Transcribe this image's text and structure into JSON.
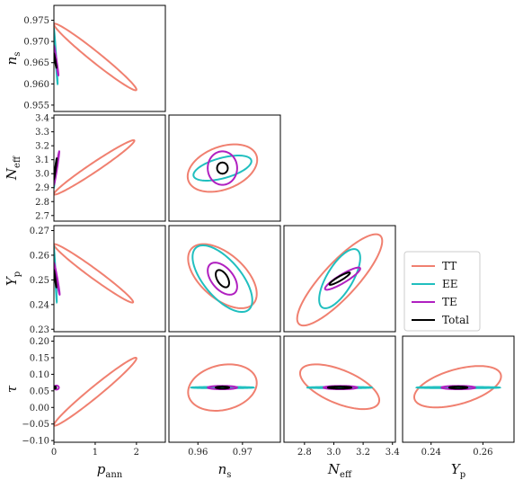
{
  "chart_data": {
    "type": "triangle-fisher-ellipses",
    "parameters": [
      {
        "key": "pann",
        "label": "p",
        "sub": "ann",
        "range": [
          0,
          2.7
        ],
        "ticks": [
          0,
          1,
          2
        ],
        "tick_labels": [
          "0",
          "1",
          "2"
        ],
        "center": 0
      },
      {
        "key": "ns",
        "label": "n",
        "sub": "s",
        "range": [
          0.9535,
          0.9785
        ],
        "ticks": [
          0.955,
          0.96,
          0.965,
          0.97,
          0.975
        ],
        "tick_labels": [
          "0.955",
          "0.960",
          "0.965",
          "0.970",
          "0.975"
        ],
        "x_ticks": [
          0.96,
          0.97
        ],
        "x_tick_labels": [
          "0.96",
          "0.97"
        ],
        "center": 0.9655
      },
      {
        "key": "neff",
        "label": "N",
        "sub": "eff",
        "range": [
          2.66,
          3.42
        ],
        "ticks": [
          2.7,
          2.8,
          2.9,
          3.0,
          3.1,
          3.2,
          3.3,
          3.4
        ],
        "tick_labels": [
          "2.7",
          "2.8",
          "2.9",
          "3.0",
          "3.1",
          "3.2",
          "3.3",
          "3.4"
        ],
        "x_ticks": [
          2.8,
          3.0,
          3.2,
          3.4
        ],
        "x_tick_labels": [
          "2.8",
          "3.0",
          "3.2",
          "3.4"
        ],
        "center": 3.04
      },
      {
        "key": "yp",
        "label": "Y",
        "sub": "p",
        "range": [
          0.229,
          0.272
        ],
        "ticks": [
          0.23,
          0.24,
          0.25,
          0.26,
          0.27
        ],
        "tick_labels": [
          "0.23",
          "0.24",
          "0.25",
          "0.26",
          "0.27"
        ],
        "x_ticks": [
          0.24,
          0.26
        ],
        "x_tick_labels": [
          "0.24",
          "0.26"
        ],
        "center": 0.2505
      },
      {
        "key": "tau",
        "label": "τ",
        "sub": "",
        "range": [
          -0.105,
          0.215
        ],
        "ticks": [
          -0.1,
          -0.05,
          0,
          0.05,
          0.1,
          0.15,
          0.2
        ],
        "tick_labels": [
          "−0.10",
          "−0.05",
          "0.00",
          "0.05",
          "0.10",
          "0.15",
          "0.20"
        ],
        "center": 0.06
      }
    ],
    "series": [
      {
        "name": "TT",
        "color": "#f08070"
      },
      {
        "name": "EE",
        "color": "#20bfbf"
      },
      {
        "name": "TE",
        "color": "#b020c0"
      },
      {
        "name": "Total",
        "color": "#000000"
      }
    ],
    "ellipses": {
      "1-0": {
        "TT": {
          "x": [
            0,
            2.0
          ],
          "y": [
            0.9585,
            0.9742
          ]
        },
        "EE": {
          "x": [
            0,
            0.09
          ],
          "y": [
            0.96,
            0.973
          ]
        },
        "TE": {
          "x": [
            0,
            0.11
          ],
          "y": [
            0.962,
            0.969
          ]
        },
        "Total": {
          "x": [
            0,
            0.06
          ],
          "y": [
            0.9638,
            0.9672
          ]
        }
      },
      "2-0": {
        "TT": {
          "x": [
            0,
            1.95
          ],
          "y": [
            2.85,
            3.24
          ]
        },
        "EE": {
          "x": [
            0,
            0.06
          ],
          "y": [
            2.9,
            3.1
          ]
        },
        "TE": {
          "x": [
            0,
            0.13
          ],
          "y": [
            2.92,
            3.16
          ]
        },
        "Total": {
          "x": [
            0,
            0.07
          ],
          "y": [
            2.96,
            3.11
          ]
        }
      },
      "3-0": {
        "TT": {
          "x": [
            0,
            1.92
          ],
          "y": [
            0.2408,
            0.2645
          ]
        },
        "EE": {
          "x": [
            0,
            0.07
          ],
          "y": [
            0.241,
            0.2632
          ]
        },
        "TE": {
          "x": [
            0,
            0.14
          ],
          "y": [
            0.244,
            0.257
          ]
        },
        "Total": {
          "x": [
            0,
            0.06
          ],
          "y": [
            0.247,
            0.254
          ]
        }
      },
      "4-0": {
        "TT": {
          "x": [
            0,
            2.0
          ],
          "y": [
            -0.055,
            0.15
          ]
        },
        "EE": {
          "x": [
            0,
            0.05
          ],
          "y": [
            0.056,
            0.064
          ]
        },
        "TE": {
          "x": [
            0,
            0.12
          ],
          "y": [
            0.054,
            0.066
          ]
        },
        "Total": {
          "x": [
            0,
            0.05
          ],
          "y": [
            0.057,
            0.063
          ]
        }
      },
      "2-1": {
        "TT": {
          "x": [
            0.9577,
            0.9733
          ],
          "y": [
            2.87,
            3.21
          ]
        },
        "EE": {
          "x": [
            0.959,
            0.972
          ],
          "y": [
            2.95,
            3.13
          ]
        },
        "TE": {
          "x": [
            0.9622,
            0.9688
          ],
          "y": [
            2.92,
            3.16
          ]
        },
        "Total": {
          "x": [
            0.9643,
            0.9667
          ],
          "y": [
            3.0,
            3.08
          ]
        }
      },
      "3-1": {
        "TT": {
          "x": [
            0.9578,
            0.9732
          ],
          "y": [
            0.2385,
            0.2645
          ]
        },
        "EE": {
          "x": [
            0.9588,
            0.9722
          ],
          "y": [
            0.237,
            0.264
          ]
        },
        "TE": {
          "x": [
            0.9622,
            0.9688
          ],
          "y": [
            0.244,
            0.257
          ]
        },
        "Total": {
          "x": [
            0.964,
            0.967
          ],
          "y": [
            0.247,
            0.254
          ]
        }
      },
      "4-1": {
        "TT": {
          "x": [
            0.9578,
            0.9732
          ],
          "y": [
            -0.01,
            0.13
          ]
        },
        "EE": {
          "x": [
            0.9585,
            0.9725
          ],
          "y": [
            0.058,
            0.062
          ]
        },
        "TE": {
          "x": [
            0.9622,
            0.9688
          ],
          "y": [
            0.055,
            0.065
          ]
        },
        "Total": {
          "x": [
            0.964,
            0.967
          ],
          "y": [
            0.057,
            0.063
          ]
        }
      },
      "3-2": {
        "TT": {
          "x": [
            2.75,
            3.33
          ],
          "y": [
            0.2315,
            0.2685
          ]
        },
        "EE": {
          "x": [
            2.9,
            3.18
          ],
          "y": [
            0.2385,
            0.2625
          ]
        },
        "TE": {
          "x": [
            2.94,
            3.18
          ],
          "y": [
            0.246,
            0.255
          ]
        },
        "Total": {
          "x": [
            2.97,
            3.11
          ],
          "y": [
            0.248,
            0.253
          ]
        }
      },
      "4-2": {
        "TT": {
          "x": [
            2.77,
            3.31
          ],
          "y": [
            -0.005,
            0.13
          ]
        },
        "EE": {
          "x": [
            2.82,
            3.26
          ],
          "y": [
            0.058,
            0.062
          ]
        },
        "TE": {
          "x": [
            2.93,
            3.16
          ],
          "y": [
            0.055,
            0.065
          ]
        },
        "Total": {
          "x": [
            2.96,
            3.12
          ],
          "y": [
            0.057,
            0.063
          ]
        }
      },
      "4-3": {
        "TT": {
          "x": [
            0.2335,
            0.267
          ],
          "y": [
            0.0,
            0.125
          ]
        },
        "EE": {
          "x": [
            0.2345,
            0.2665
          ],
          "y": [
            0.058,
            0.062
          ]
        },
        "TE": {
          "x": [
            0.244,
            0.257
          ],
          "y": [
            0.055,
            0.065
          ]
        },
        "Total": {
          "x": [
            0.247,
            0.254
          ],
          "y": [
            0.057,
            0.063
          ]
        }
      }
    },
    "correlation": {
      "1-0": {
        "TT": 1,
        "EE": 1,
        "TE": 1,
        "Total": 1
      },
      "2-0": {
        "TT": -1,
        "EE": -1,
        "TE": -1,
        "Total": -1
      },
      "3-0": {
        "TT": 1,
        "EE": 1,
        "TE": 1,
        "Total": 1
      },
      "4-0": {
        "TT": -1,
        "EE": 0,
        "TE": 0,
        "Total": 0
      },
      "2-1": {
        "TT": -0.35,
        "EE": -0.55,
        "TE": 0,
        "Total": 0
      },
      "3-1": {
        "TT": 0.55,
        "EE": 0.65,
        "TE": 0.5,
        "Total": 0.5
      },
      "4-1": {
        "TT": -0.2,
        "EE": 0,
        "TE": 0,
        "Total": 0
      },
      "3-2": {
        "TT": -0.85,
        "EE": -0.7,
        "TE": -0.9,
        "Total": -0.92
      },
      "4-2": {
        "TT": 0.6,
        "EE": 0,
        "TE": 0,
        "Total": 0
      },
      "4-3": {
        "TT": -0.5,
        "EE": 0,
        "TE": 0,
        "Total": 0
      }
    },
    "legend": {
      "placement": "right-middle",
      "entries": [
        "TT",
        "EE",
        "TE",
        "Total"
      ]
    }
  }
}
